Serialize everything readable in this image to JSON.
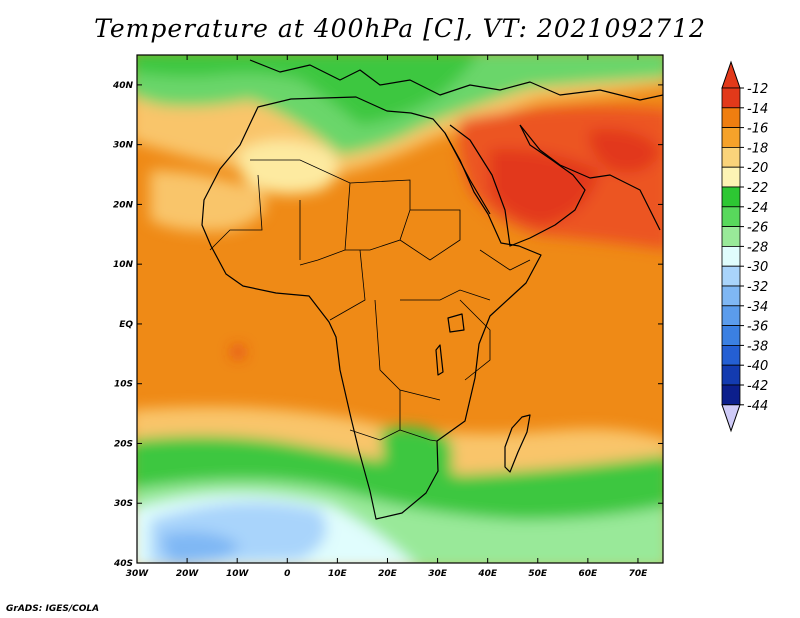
{
  "title": "Temperature at 400hPa [C], VT: 2021092712",
  "credit": "GrADS: IGES/COLA",
  "map": {
    "lon_range": [
      -30,
      75
    ],
    "lat_range": [
      -40,
      45
    ],
    "lon_ticks": [
      {
        "v": -30,
        "label": "30W"
      },
      {
        "v": -20,
        "label": "20W"
      },
      {
        "v": -10,
        "label": "10W"
      },
      {
        "v": 0,
        "label": "0"
      },
      {
        "v": 10,
        "label": "10E"
      },
      {
        "v": 20,
        "label": "20E"
      },
      {
        "v": 30,
        "label": "30E"
      },
      {
        "v": 40,
        "label": "40E"
      },
      {
        "v": 50,
        "label": "50E"
      },
      {
        "v": 60,
        "label": "60E"
      },
      {
        "v": 70,
        "label": "70E"
      }
    ],
    "lat_ticks": [
      {
        "v": 40,
        "label": "40N"
      },
      {
        "v": 30,
        "label": "30N"
      },
      {
        "v": 20,
        "label": "20N"
      },
      {
        "v": 10,
        "label": "10N"
      },
      {
        "v": 0,
        "label": "EQ"
      },
      {
        "v": -10,
        "label": "10S"
      },
      {
        "v": -20,
        "label": "20S"
      },
      {
        "v": -30,
        "label": "30S"
      },
      {
        "v": -40,
        "label": "40S"
      }
    ]
  },
  "colorbar": {
    "labels": [
      "-12",
      "-14",
      "-16",
      "-18",
      "-20",
      "-22",
      "-24",
      "-26",
      "-28",
      "-30",
      "-32",
      "-34",
      "-36",
      "-38",
      "-40",
      "-42",
      "-44"
    ],
    "colors": [
      "#e2391a",
      "#ef7e10",
      "#f6a22a",
      "#fad37a",
      "#fdf3b4",
      "#2dc733",
      "#58d85c",
      "#99e999",
      "#e0fdfd",
      "#a9d4fb",
      "#7fb7f4",
      "#5b9cec",
      "#3b80e2",
      "#245fd3",
      "#133bb0",
      "#0c1f8c"
    ],
    "over_color": "#e2391a",
    "under_color": "#cfcbf8"
  },
  "legend_colors": {
    "land_outline": "#000000",
    "frame": "#000000"
  }
}
